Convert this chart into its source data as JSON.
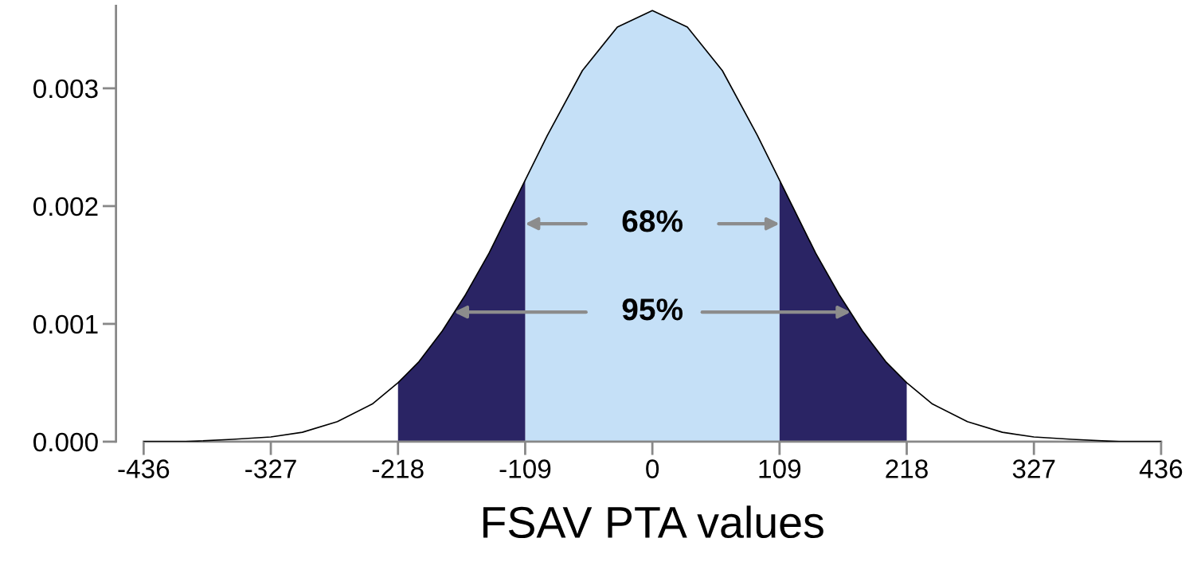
{
  "chart_data": {
    "type": "area",
    "xlabel": "FSAV PTA values",
    "series": [
      {
        "color": "#c5e0f7",
        "x": [
          -109,
          -90,
          -60,
          -30,
          0,
          30,
          60,
          90,
          109
        ],
        "values": [
          0.00222,
          0.0026,
          0.00315,
          0.00352,
          0.00366,
          0.00352,
          0.00315,
          0.0026,
          0.00222
        ]
      },
      {
        "color": "#2a2464",
        "x": [
          -218,
          -200,
          -180,
          -160,
          -140,
          -120,
          -109,
          0,
          109,
          120,
          140,
          160,
          180,
          200,
          218
        ],
        "values": [
          0.0005,
          0.00068,
          0.00094,
          0.00125,
          0.0016,
          0.002,
          0.00222,
          null,
          0.00222,
          0.002,
          0.0016,
          0.00125,
          0.00094,
          0.00068,
          0.0005
        ]
      },
      {
        "type": "line",
        "color": "#000000",
        "x": [
          -436,
          -400,
          -360,
          -327,
          -300,
          -270,
          -240,
          -218,
          -200,
          -180,
          -160,
          -140,
          -120,
          -109,
          -90,
          -60,
          -30,
          0,
          30,
          60,
          90,
          109,
          120,
          140,
          160,
          180,
          200,
          218,
          240,
          270,
          300,
          327,
          360,
          400,
          436
        ],
        "values": [
          0.0,
          0.0,
          2e-05,
          4e-05,
          8e-05,
          0.00017,
          0.00032,
          0.0005,
          0.00068,
          0.00094,
          0.00125,
          0.0016,
          0.002,
          0.00222,
          0.0026,
          0.00315,
          0.00352,
          0.00366,
          0.00352,
          0.00315,
          0.0026,
          0.00222,
          0.002,
          0.0016,
          0.00125,
          0.00094,
          0.00068,
          0.0005,
          0.00032,
          0.00017,
          8e-05,
          4e-05,
          2e-05,
          0.0,
          0.0
        ]
      }
    ],
    "annotations": [
      "68%",
      {
        "text": "95%",
        "x": 170,
        "y": 0.0011
      }
    ],
    "xlim": [
      -436,
      436
    ],
    "ylim": [
      0,
      0.0037
    ],
    "xticks": [
      -436,
      -327,
      -218,
      -109,
      0,
      109,
      218,
      327,
      436
    ],
    "yticks": [
      {
        "value": 0,
        "label": "0.000"
      },
      {
        "value": 0.001,
        "label": "0.001"
      },
      {
        "value": 0.002,
        "label": "0.002"
      },
      {
        "value": 0.003,
        "label": "0.003"
      }
    ],
    "grid": false
  }
}
